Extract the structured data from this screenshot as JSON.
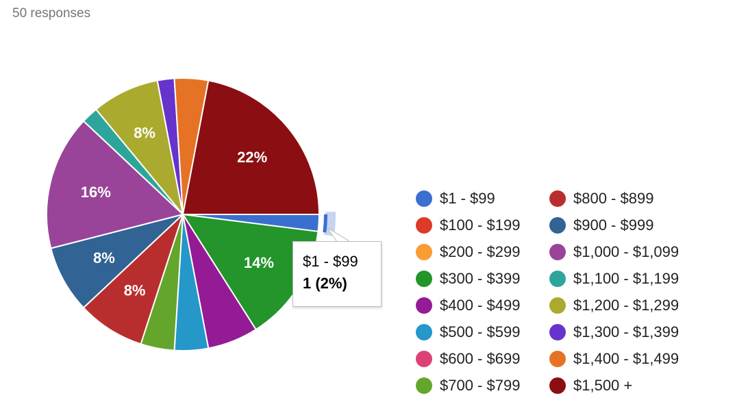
{
  "header": {
    "responses": "50 responses"
  },
  "tooltip": {
    "label": "$1 - $99",
    "value": "1 (2%)"
  },
  "chart_data": {
    "type": "pie",
    "total": 50,
    "slices": [
      {
        "label": "$1 - $99",
        "value": 1,
        "percent_label": "",
        "color": "#3a6fd0"
      },
      {
        "label": "$100 - $199",
        "value": 0,
        "percent_label": "",
        "color": "#dc3b27"
      },
      {
        "label": "$200 - $299",
        "value": 0,
        "percent_label": "",
        "color": "#f89c33"
      },
      {
        "label": "$300 - $399",
        "value": 7,
        "percent_label": "14%",
        "color": "#23952a"
      },
      {
        "label": "$400 - $499",
        "value": 3,
        "percent_label": "",
        "color": "#951a95"
      },
      {
        "label": "$500 - $599",
        "value": 2,
        "percent_label": "",
        "color": "#2597c8"
      },
      {
        "label": "$600 - $699",
        "value": 0,
        "percent_label": "",
        "color": "#dc4277"
      },
      {
        "label": "$700 - $799",
        "value": 2,
        "percent_label": "",
        "color": "#63a62b"
      },
      {
        "label": "$800 - $899",
        "value": 4,
        "percent_label": "8%",
        "color": "#b82e2e"
      },
      {
        "label": "$900 - $999",
        "value": 4,
        "percent_label": "8%",
        "color": "#316395"
      },
      {
        "label": "$1,000 - $1,099",
        "value": 8,
        "percent_label": "16%",
        "color": "#994499"
      },
      {
        "label": "$1,100 - $1,199",
        "value": 1,
        "percent_label": "",
        "color": "#2ea59a"
      },
      {
        "label": "$1,200 - $1,299",
        "value": 4,
        "percent_label": "8%",
        "color": "#aaaa2f"
      },
      {
        "label": "$1,300 - $1,399",
        "value": 1,
        "percent_label": "",
        "color": "#6633cc"
      },
      {
        "label": "$1,400 - $1,499",
        "value": 2,
        "percent_label": "",
        "color": "#e67325"
      },
      {
        "label": "$1,500 +",
        "value": 11,
        "percent_label": "22%",
        "color": "#8b0e12"
      }
    ]
  }
}
